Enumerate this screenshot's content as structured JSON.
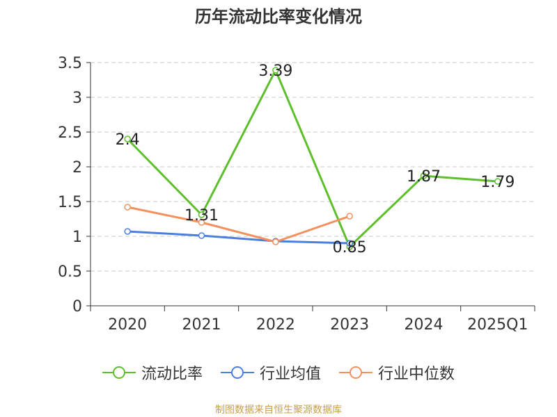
{
  "title": "历年流动比率变化情况",
  "source": "制图数据来自恒生聚源数据库",
  "colors": {
    "current_ratio": "#5dbf2b",
    "industry_avg": "#4a7fe0",
    "industry_median": "#f5905d",
    "grid": "#c8c8c8",
    "axis": "#333333"
  },
  "chart_data": {
    "type": "line",
    "title": "历年流动比率变化情况",
    "categories": [
      "2020",
      "2021",
      "2022",
      "2023",
      "2024",
      "2025Q1"
    ],
    "ylim": [
      0,
      3.5
    ],
    "yticks": [
      "0",
      "0.5",
      "1",
      "1.5",
      "2",
      "2.5",
      "3",
      "3.5"
    ],
    "grid": true,
    "legend_position": "bottom",
    "series": [
      {
        "name": "流动比率",
        "color_key": "current_ratio",
        "values": [
          2.4,
          1.31,
          3.39,
          0.85,
          1.87,
          1.79
        ],
        "labels": [
          "2.4",
          "1.31",
          "3.39",
          "0.85",
          "1.87",
          "1.79"
        ]
      },
      {
        "name": "行业均值",
        "color_key": "industry_avg",
        "values": [
          1.07,
          1.01,
          0.93,
          0.9,
          null,
          null
        ]
      },
      {
        "name": "行业中位数",
        "color_key": "industry_median",
        "values": [
          1.42,
          1.2,
          0.92,
          1.29,
          null,
          null
        ]
      }
    ]
  }
}
